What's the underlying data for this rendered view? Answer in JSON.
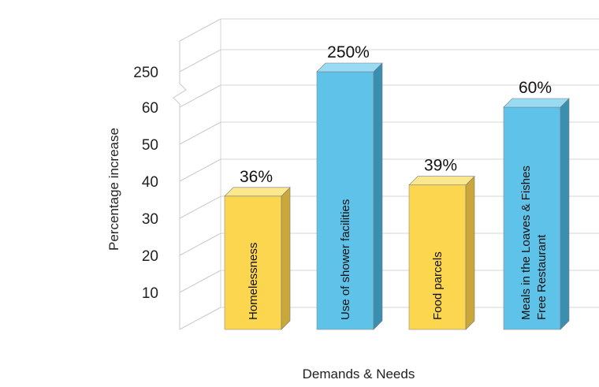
{
  "chart_data": {
    "type": "bar",
    "title": "",
    "xlabel": "Demands & Needs",
    "ylabel": "Percentage increase",
    "y_tick_labels": [
      "10",
      "20",
      "30",
      "40",
      "50",
      "60",
      "250"
    ],
    "y_axis_break": "between 60 and 250",
    "categories": [
      [
        "Homelessness"
      ],
      [
        "Use of shower facilities"
      ],
      [
        "Food parcels"
      ],
      [
        "Meals in the Loaves & Fishes",
        "Free Restaurant"
      ]
    ],
    "values": [
      36,
      250,
      39,
      60
    ],
    "data_labels": [
      "36%",
      "250%",
      "39%",
      "60%"
    ],
    "bar_colors": [
      "#fdd64f",
      "#5fc3e9",
      "#fdd64f",
      "#5fc3e9"
    ],
    "grid": true,
    "legend": "none"
  }
}
